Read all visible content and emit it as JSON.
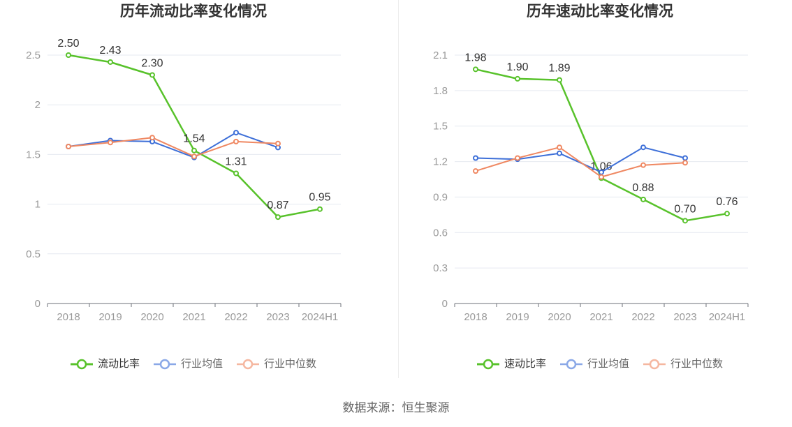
{
  "footer": {
    "source": "数据来源：恒生聚源"
  },
  "chart_data": [
    {
      "type": "line",
      "title": "历年流动比率变化情况",
      "categories": [
        "2018",
        "2019",
        "2020",
        "2021",
        "2022",
        "2023",
        "2024H1"
      ],
      "ylim": [
        0,
        2.5
      ],
      "yticks": [
        0,
        0.5,
        1,
        1.5,
        2,
        2.5
      ],
      "grid": true,
      "legend_position": "bottom",
      "series": [
        {
          "name": "流动比率",
          "color": "#58c22b",
          "values": [
            2.5,
            2.43,
            2.3,
            1.54,
            1.31,
            0.87,
            0.95
          ],
          "data_labels": [
            "2.50",
            "2.43",
            "2.30",
            "1.54",
            "1.31",
            "0.87",
            "0.95"
          ]
        },
        {
          "name": "行业均值",
          "color": "#3d6fd8",
          "values": [
            1.58,
            1.64,
            1.63,
            1.47,
            1.72,
            1.57,
            null
          ]
        },
        {
          "name": "行业中位数",
          "color": "#ef8862",
          "values": [
            1.58,
            1.62,
            1.67,
            1.48,
            1.63,
            1.61,
            null
          ]
        }
      ]
    },
    {
      "type": "line",
      "title": "历年速动比率变化情况",
      "categories": [
        "2018",
        "2019",
        "2020",
        "2021",
        "2022",
        "2023",
        "2024H1"
      ],
      "ylim": [
        0,
        2.1
      ],
      "yticks": [
        0,
        0.3,
        0.6,
        0.9,
        1.2,
        1.5,
        1.8,
        2.1
      ],
      "grid": true,
      "legend_position": "bottom",
      "series": [
        {
          "name": "速动比率",
          "color": "#58c22b",
          "values": [
            1.98,
            1.9,
            1.89,
            1.06,
            0.88,
            0.7,
            0.76
          ],
          "data_labels": [
            "1.98",
            "1.90",
            "1.89",
            "1.06",
            "0.88",
            "0.70",
            "0.76"
          ]
        },
        {
          "name": "行业均值",
          "color": "#3d6fd8",
          "values": [
            1.23,
            1.22,
            1.27,
            1.11,
            1.32,
            1.23,
            null
          ]
        },
        {
          "name": "行业中位数",
          "color": "#ef8862",
          "values": [
            1.12,
            1.23,
            1.32,
            1.07,
            1.17,
            1.19,
            null
          ]
        }
      ]
    }
  ]
}
